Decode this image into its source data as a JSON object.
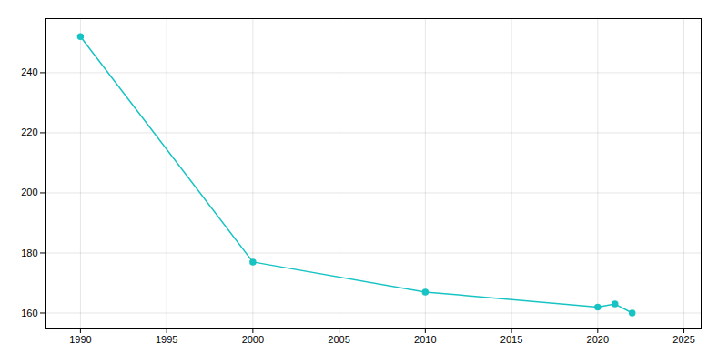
{
  "chart_data": {
    "type": "line",
    "x": [
      1990,
      2000,
      2010,
      2020,
      2021,
      2022
    ],
    "values": [
      252,
      177,
      167,
      162,
      163,
      160
    ],
    "color": "#17c3c3",
    "marker": "circle",
    "xlim": [
      1988,
      2026
    ],
    "ylim": [
      155,
      258
    ],
    "xticks": [
      1990,
      1995,
      2000,
      2005,
      2010,
      2015,
      2020,
      2025
    ],
    "yticks": [
      160,
      180,
      200,
      220,
      240
    ],
    "grid": true
  }
}
